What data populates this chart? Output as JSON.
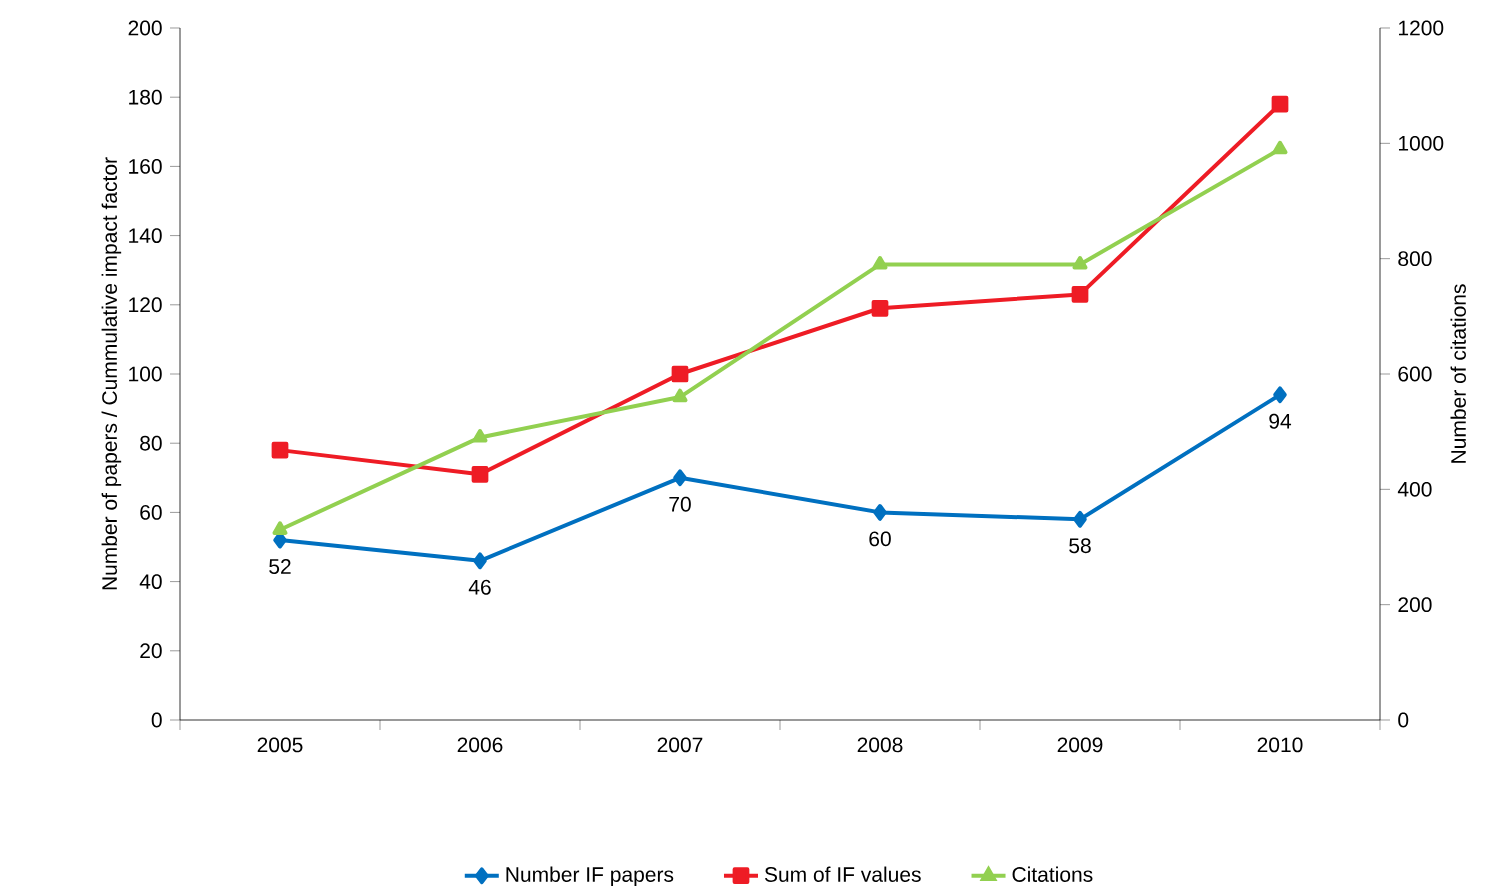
{
  "chart_data": {
    "type": "line",
    "xlabel": null,
    "ylabel": "Number of papers / Cummulative impact factor",
    "y2label": "Number of citations",
    "categories": [
      "2005",
      "2006",
      "2007",
      "2008",
      "2009",
      "2010"
    ],
    "ylim": [
      0,
      200
    ],
    "yticks": [
      0,
      20,
      40,
      60,
      80,
      100,
      120,
      140,
      160,
      180,
      200
    ],
    "y2lim": [
      0,
      1200
    ],
    "y2ticks": [
      0,
      200,
      400,
      600,
      800,
      1000,
      1200
    ],
    "legend": "bottom",
    "series": [
      {
        "name": "Number IF papers",
        "color": "#0070c0",
        "marker": "diamond",
        "values": [
          52,
          46,
          70,
          60,
          58,
          94
        ],
        "value_labels": [
          "52",
          "46",
          "70",
          "60",
          "58",
          "94"
        ]
      },
      {
        "name": "Sum of IF values",
        "color": "#ee1c25",
        "marker": "square",
        "values": [
          78,
          71,
          100,
          119,
          123,
          178
        ]
      },
      {
        "name": "Citations",
        "color": "#92d050",
        "marker": "triangle",
        "axis": "y2",
        "values": [
          330,
          490,
          560,
          790,
          790,
          990
        ]
      }
    ]
  }
}
